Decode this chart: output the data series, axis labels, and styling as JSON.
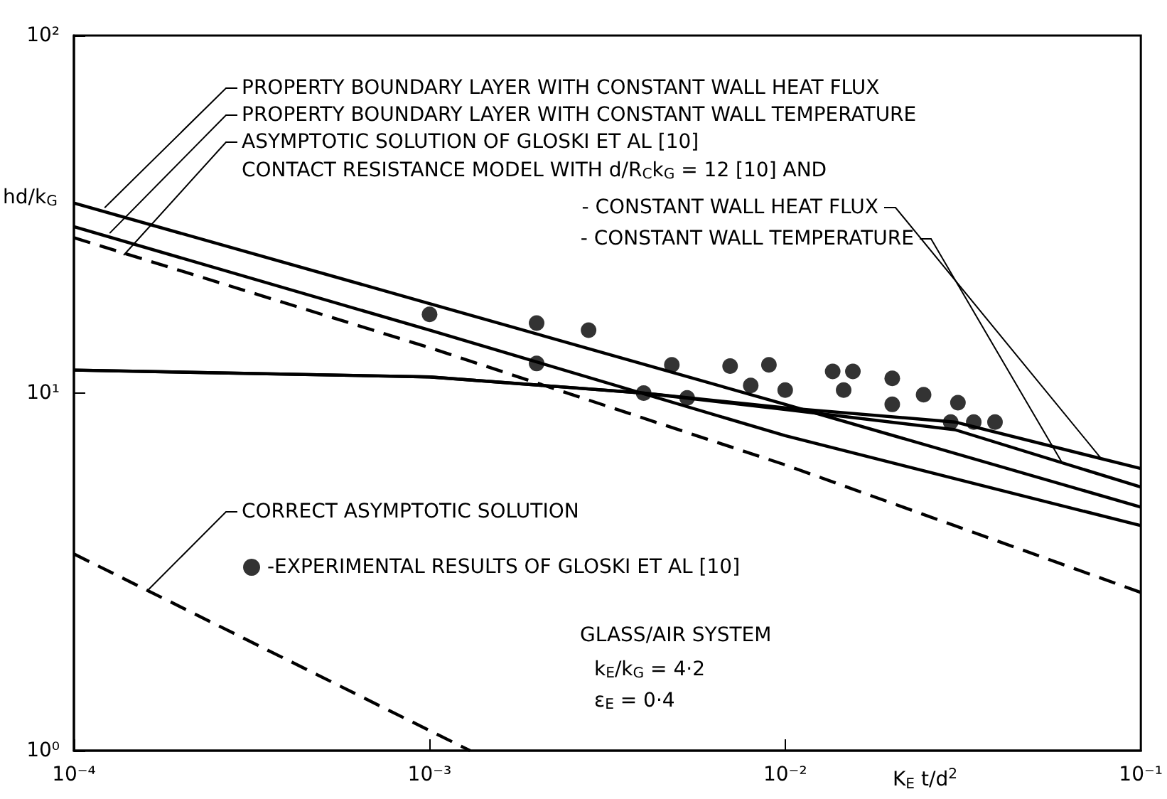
{
  "chart_data": {
    "type": "line",
    "xlabel": "K$_{E}$ t/d$^{2}$",
    "ylabel": "hd/k$_{G}$",
    "log": "xy",
    "xlim": [
      0.0001,
      0.1
    ],
    "ylim": [
      1,
      100
    ],
    "xticks": [
      {
        "value": 0.0001,
        "label": "10⁻⁴"
      },
      {
        "value": 0.001,
        "label": "10⁻³"
      },
      {
        "value": 0.01,
        "label": "10⁻²"
      },
      {
        "value": 0.1,
        "label": "10⁻¹"
      }
    ],
    "yticks": [
      {
        "value": 1,
        "label": "10⁰"
      },
      {
        "value": 10,
        "label": "10¹"
      },
      {
        "value": 100,
        "label": "10²"
      }
    ],
    "grid": false,
    "legend": "left",
    "series": [
      {
        "color": "#000000",
        "line_style": "solid",
        "marker": "none",
        "x": [
          0.0001,
          0.001,
          0.01,
          0.1
        ],
        "values": [
          34,
          17.8,
          9.3,
          4.8
        ]
      },
      {
        "color": "#000000",
        "line_style": "solid",
        "marker": "none",
        "x": [
          0.0001,
          0.001,
          0.01,
          0.1
        ],
        "values": [
          29.2,
          15,
          7.6,
          4.26
        ]
      },
      {
        "color": "#000000",
        "line_style": "dashed",
        "marker": "none",
        "x": [
          0.0001,
          0.001,
          0.01,
          0.1
        ],
        "values": [
          27.2,
          13.4,
          6.3,
          2.77
        ]
      },
      {
        "color": "#000000",
        "line_style": "solid",
        "marker": "none",
        "x": [
          0.0001,
          0.001,
          0.004,
          0.01,
          0.03,
          0.1
        ],
        "values": [
          11.6,
          11.1,
          10,
          9.1,
          8.3,
          6.15
        ]
      },
      {
        "color": "#000000",
        "line_style": "solid",
        "marker": "none",
        "x": [
          0.0001,
          0.001,
          0.004,
          0.01,
          0.03,
          0.1
        ],
        "values": [
          11.6,
          11.1,
          10,
          9,
          7.9,
          5.46
        ]
      },
      {
        "color": "#000000",
        "line_style": "dashed",
        "marker": "none",
        "x": [
          0.0001,
          0.0013
        ],
        "values": [
          3.55,
          1
        ]
      },
      {
        "type": "scatter",
        "name": "-EXPERIMENTAL RESULTS OF GLOSKI ET AL [10]",
        "color": "#000000",
        "marker": "circle",
        "x": [
          0.001,
          0.002,
          0.0028,
          0.002,
          0.004,
          0.0048,
          0.0053,
          0.007,
          0.008,
          0.009,
          0.01,
          0.0136,
          0.0155,
          0.0146,
          0.02,
          0.02,
          0.0245,
          0.0306,
          0.0292,
          0.0339,
          0.0389
        ],
        "values": [
          16.6,
          15.7,
          15,
          12.1,
          10,
          12,
          9.7,
          11.9,
          10.5,
          12,
          10.2,
          11.5,
          11.5,
          10.2,
          11,
          9.3,
          9.9,
          9.4,
          8.3,
          8.3,
          8.3
        ]
      }
    ],
    "annotations": [
      {
        "text": "PROPERTY BOUNDARY LAYER WITH CONSTANT WALL HEAT FLUX",
        "x": 0.000122,
        "y": 33
      },
      {
        "text": "PROPERTY BOUNDARY LAYER WITH CONSTANT WALL TEMPERATURE",
        "x": 0.000126,
        "y": 28
      },
      {
        "text": "ASYMPTOTIC SOLUTION OF GLOSKI ET AL [10]",
        "x": 0.000138,
        "y": 24.3
      },
      "CONTACT RESISTANCE MODEL WITH d/R$_{C}$k$_{G}$ = 12 [10] AND",
      {
        "text": "- CONSTANT WALL HEAT FLUX",
        "x": 0.077,
        "y": 6.6
      },
      {
        "text": "- CONSTANT WALL TEMPERATURE",
        "x": 0.06,
        "y": 6.4
      },
      {
        "text": "CORRECT ASYMPTOTIC SOLUTION",
        "x": 0.000162,
        "y": 2.82
      },
      "GLASS/AIR SYSTEM",
      "k$_{E}$/k$_{G}$ = 4·2",
      "ε$_{E}$ = 0·4"
    ]
  }
}
